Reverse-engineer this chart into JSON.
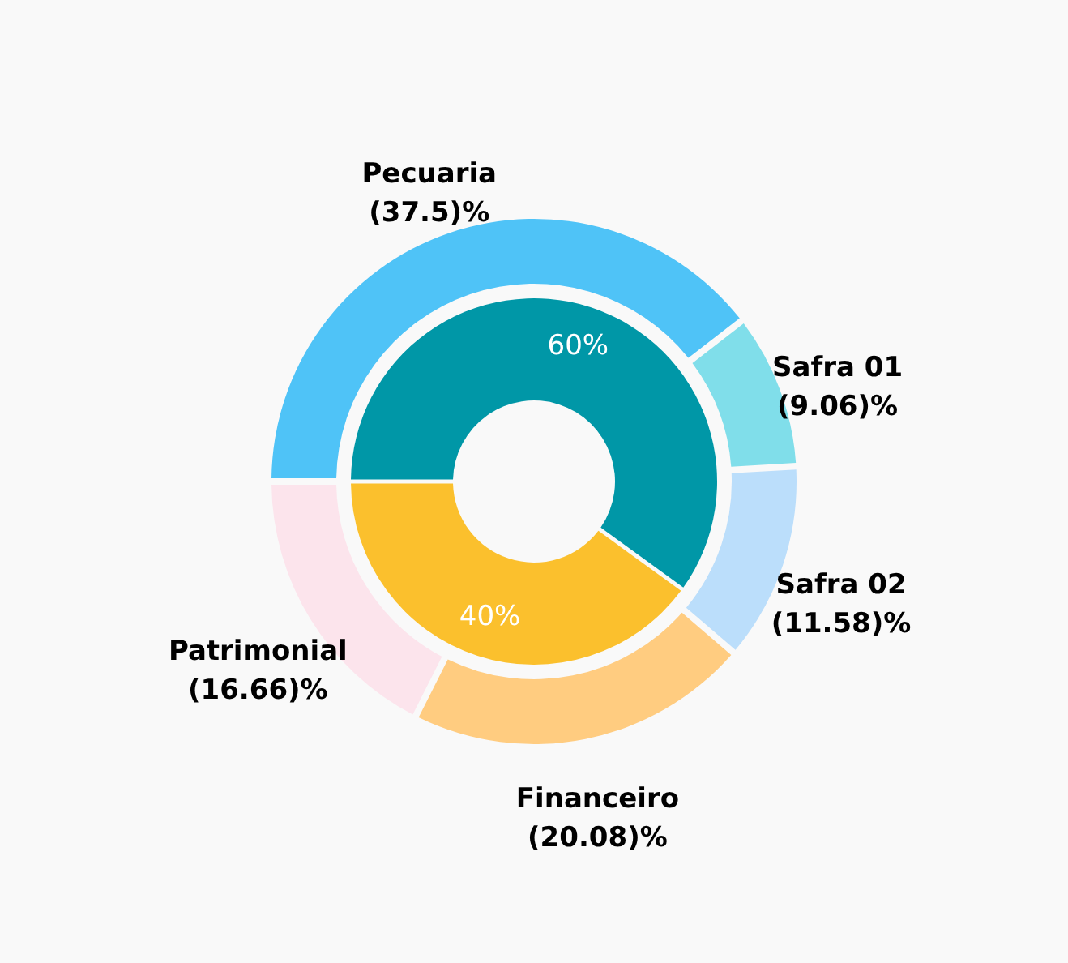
{
  "chart_data": {
    "type": "donut",
    "categories": [
      "Pecuaria",
      "Safra 01",
      "Safra 02",
      "Financeiro",
      "Patrimonial",
      null,
      null
    ],
    "series": [
      {
        "values": [
          37.5,
          9.06,
          11.58,
          20.08,
          16.66,
          null,
          null
        ],
        "colors": [
          "#4fc3f7",
          "#80deea",
          "#bbdefb",
          "#ffcc80",
          "#fce4ec",
          null,
          null
        ],
        "value_labels": [
          "(37.5)%",
          "(9.06)%",
          "(11.58)%",
          "(20.08)%",
          "(16.66)%",
          null,
          null
        ]
      },
      {
        "values": [
          null,
          null,
          null,
          null,
          null,
          60,
          40
        ],
        "colors": [
          null,
          null,
          null,
          null,
          null,
          "#0097a7",
          "#fbc02d"
        ],
        "value_labels": [
          null,
          null,
          null,
          null,
          null,
          "60%",
          "40%"
        ]
      }
    ]
  }
}
